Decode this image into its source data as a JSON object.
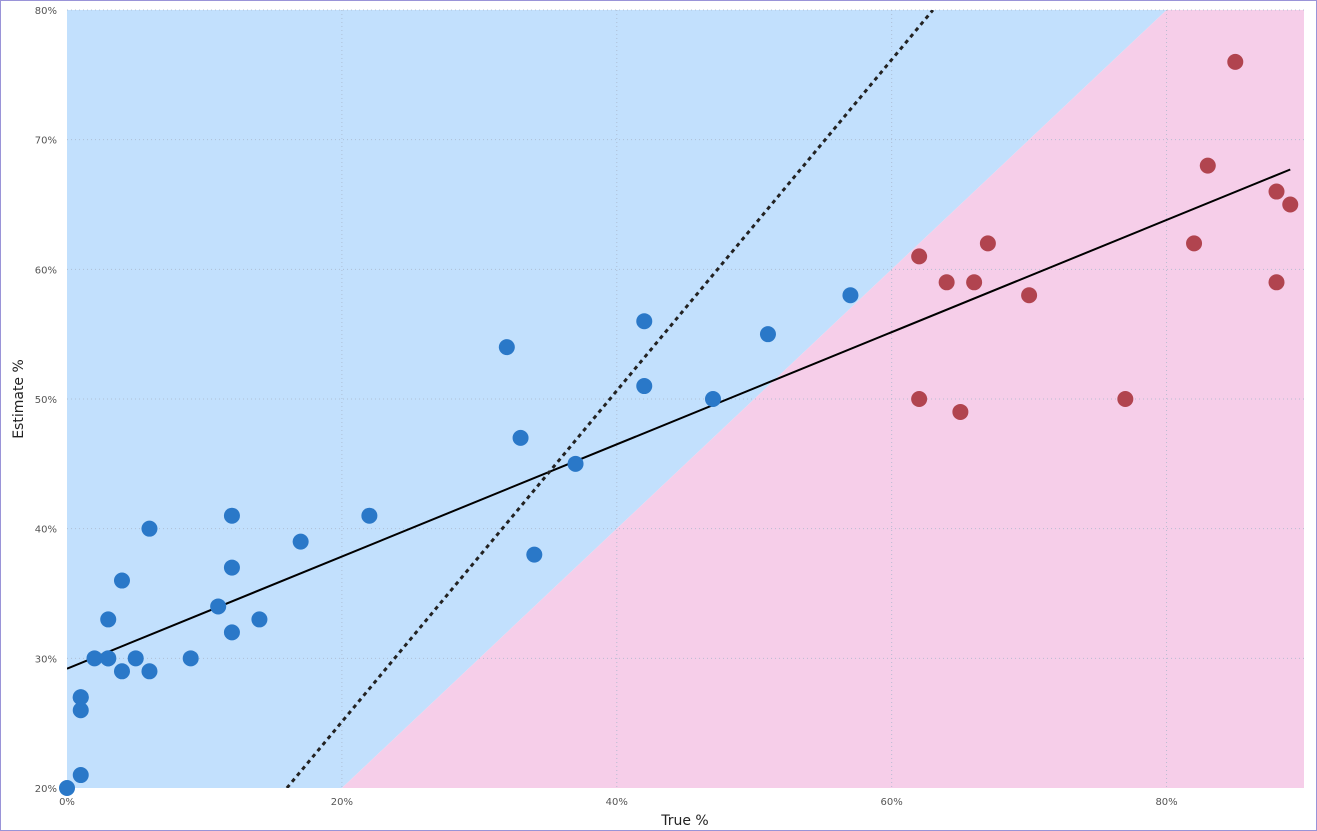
{
  "chart_data": {
    "type": "scatter",
    "xlabel": "True %",
    "ylabel": "Estimate %",
    "xlim": [
      0,
      90
    ],
    "ylim": [
      20,
      80
    ],
    "x_ticks": [
      {
        "value": 0,
        "label": "0%"
      },
      {
        "value": 20,
        "label": "20%"
      },
      {
        "value": 40,
        "label": "40%"
      },
      {
        "value": 60,
        "label": "60%"
      },
      {
        "value": 80,
        "label": "80%"
      }
    ],
    "y_ticks": [
      {
        "value": 20,
        "label": "20%"
      },
      {
        "value": 30,
        "label": "30%"
      },
      {
        "value": 40,
        "label": "40%"
      },
      {
        "value": 50,
        "label": "50%"
      },
      {
        "value": 60,
        "label": "60%"
      },
      {
        "value": 70,
        "label": "70%"
      },
      {
        "value": 80,
        "label": "80%"
      }
    ],
    "grid": true,
    "regions": [
      {
        "color": "#c2e0fd",
        "polygon": [
          [
            0,
            20
          ],
          [
            0,
            80
          ],
          [
            80,
            80
          ],
          [
            20,
            20
          ]
        ]
      },
      {
        "color": "#f6cee9",
        "polygon": [
          [
            20,
            20
          ],
          [
            80,
            80
          ],
          [
            90,
            80
          ],
          [
            90,
            20
          ]
        ]
      }
    ],
    "series": [
      {
        "color": "#2a78c8",
        "points": [
          [
            0,
            20
          ],
          [
            1,
            21
          ],
          [
            1,
            26
          ],
          [
            1,
            27
          ],
          [
            1,
            27
          ],
          [
            2,
            30
          ],
          [
            3,
            30
          ],
          [
            3,
            30
          ],
          [
            3,
            33
          ],
          [
            4,
            29
          ],
          [
            4,
            36
          ],
          [
            5,
            30
          ],
          [
            6,
            29
          ],
          [
            6,
            40
          ],
          [
            9,
            30
          ],
          [
            11,
            34
          ],
          [
            12,
            32
          ],
          [
            12,
            37
          ],
          [
            12,
            41
          ],
          [
            14,
            33
          ],
          [
            17,
            39
          ],
          [
            22,
            41
          ],
          [
            32,
            54
          ],
          [
            33,
            47
          ],
          [
            34,
            38
          ],
          [
            37,
            45
          ],
          [
            42,
            56
          ],
          [
            42,
            51
          ],
          [
            47,
            50
          ],
          [
            51,
            55
          ],
          [
            57,
            58
          ]
        ]
      },
      {
        "color": "#b1444f",
        "points": [
          [
            62,
            61
          ],
          [
            62,
            50
          ],
          [
            64,
            59
          ],
          [
            65,
            49
          ],
          [
            66,
            59
          ],
          [
            67,
            62
          ],
          [
            70,
            58
          ],
          [
            77,
            50
          ],
          [
            82,
            62
          ],
          [
            83,
            68
          ],
          [
            85,
            76
          ],
          [
            88,
            66
          ],
          [
            88,
            59
          ],
          [
            89,
            65
          ]
        ]
      }
    ],
    "lines": [
      {
        "style": "solid",
        "color": "#000000",
        "from": [
          0,
          29.2
        ],
        "to": [
          89,
          67.7
        ]
      },
      {
        "style": "dotted",
        "color": "#222222",
        "from": [
          16,
          20
        ],
        "to": [
          63,
          80
        ]
      }
    ]
  }
}
